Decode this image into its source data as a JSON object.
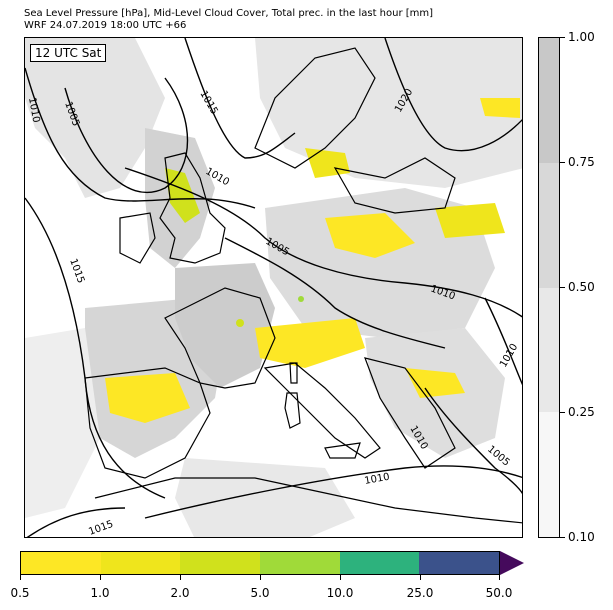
{
  "title": {
    "line1": "Sea Level Pressure [hPa], Mid-Level Cloud Cover, Total prec. in the last hour [mm]",
    "line2": "WRF 24.07.2019 18:00 UTC +66"
  },
  "valid_time_label": "12 UTC Sat",
  "isobar_labels": [
    "1010",
    "1005",
    "1015",
    "1010",
    "1020",
    "1005",
    "1015",
    "1010",
    "1010",
    "1005",
    "1010",
    "1015",
    "1010"
  ],
  "cloud_cover_scale": {
    "labels": [
      "1.00",
      "0.75",
      "0.50",
      "0.25",
      "0.10"
    ],
    "colors": [
      "#c8c8c8",
      "#d8d8d8",
      "#e8e8e8",
      "#f7f7f7"
    ]
  },
  "precip_scale": {
    "labels": [
      "0.5",
      "1.0",
      "2.0",
      "5.0",
      "10.0",
      "25.0",
      "50.0"
    ],
    "colors": [
      "#fde725",
      "#efe51c",
      "#d0e11c",
      "#a0da39",
      "#2db27d",
      "#3b528b",
      "#450a5c"
    ]
  },
  "colors": {
    "cloud_light": "#e4e4e4",
    "cloud_dark": "#c9c9c9",
    "coast": "#000000",
    "precip_main": "#fde725"
  }
}
